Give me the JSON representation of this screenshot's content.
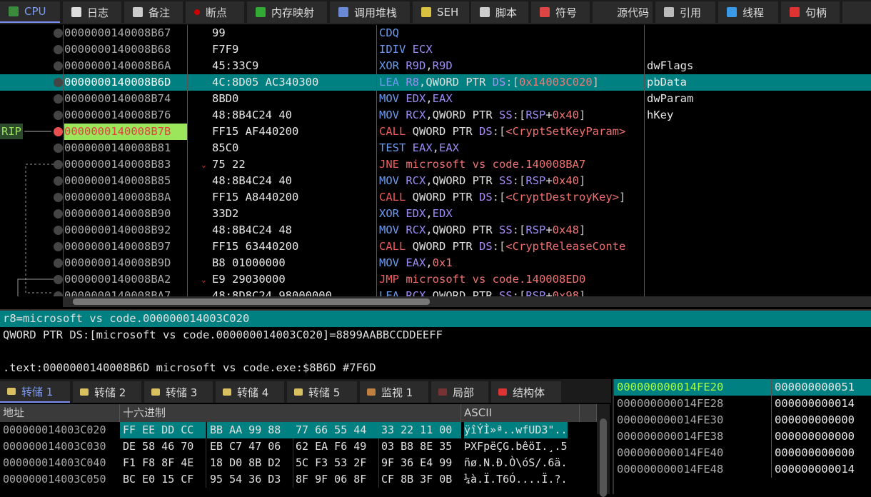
{
  "top_tabs": [
    {
      "label": "CPU",
      "icon": "cpu-chip-icon",
      "active": true
    },
    {
      "label": "日志",
      "icon": "log-note-icon"
    },
    {
      "label": "备注",
      "icon": "notes-icon"
    },
    {
      "label": "断点",
      "icon": "breakpoint-dot-icon"
    },
    {
      "label": "内存映射",
      "icon": "memory-map-icon"
    },
    {
      "label": "调用堆栈",
      "icon": "call-stack-icon"
    },
    {
      "label": "SEH",
      "icon": "seh-chain-icon"
    },
    {
      "label": "脚本",
      "icon": "script-icon"
    },
    {
      "label": "符号",
      "icon": "symbols-icon"
    },
    {
      "label": "源代码",
      "icon": "source-code-icon"
    },
    {
      "label": "引用",
      "icon": "references-icon"
    },
    {
      "label": "线程",
      "icon": "threads-icon"
    },
    {
      "label": "句柄",
      "icon": "handles-icon"
    }
  ],
  "colors": {
    "selection": "#008080",
    "rip_highlight": "#9be65a",
    "mnemonic": "#6a9cf0",
    "call_jump": "#f05a5a",
    "register": "#9d8cf5",
    "number": "#f07878"
  },
  "rip_label": "RIP",
  "disasm": [
    {
      "addr": "0000000140008B67",
      "bytes": "99",
      "ins": [
        [
          "CDQ",
          "mn"
        ]
      ],
      "cmt": ""
    },
    {
      "addr": "0000000140008B68",
      "bytes": "F7F9",
      "ins": [
        [
          "IDIV ",
          "mn"
        ],
        [
          "ECX",
          "rg"
        ]
      ],
      "cmt": ""
    },
    {
      "addr": "0000000140008B6A",
      "bytes": "45:33C9",
      "ins": [
        [
          "XOR ",
          "mn"
        ],
        [
          "R9D",
          "rg"
        ],
        [
          ",",
          "tx"
        ],
        [
          "R9D",
          "rg"
        ]
      ],
      "cmt": "dwFlags"
    },
    {
      "addr": "0000000140008B6D",
      "bytes": "4C:8D05 AC340300",
      "ins": [
        [
          "LEA ",
          "mn"
        ],
        [
          "R8",
          "rg"
        ],
        [
          ",QWORD PTR ",
          "tx"
        ],
        [
          "DS",
          "sg"
        ],
        [
          ":[",
          "br"
        ],
        [
          "0x14003C020",
          "nm"
        ],
        [
          "]",
          "br"
        ]
      ],
      "cmt": "pbData",
      "selected": true
    },
    {
      "addr": "0000000140008B74",
      "bytes": "8BD0",
      "ins": [
        [
          "MOV ",
          "mn"
        ],
        [
          "EDX",
          "rg"
        ],
        [
          ",",
          "tx"
        ],
        [
          "EAX",
          "rg"
        ]
      ],
      "cmt": "dwParam"
    },
    {
      "addr": "0000000140008B76",
      "bytes": "48:8B4C24 40",
      "ins": [
        [
          "MOV ",
          "mn"
        ],
        [
          "RCX",
          "rg"
        ],
        [
          ",QWORD PTR ",
          "tx"
        ],
        [
          "SS",
          "sg"
        ],
        [
          ":[",
          "br"
        ],
        [
          "RSP",
          "rg"
        ],
        [
          "+",
          "tx"
        ],
        [
          "0x40",
          "nm"
        ],
        [
          "]",
          "br"
        ]
      ],
      "cmt": "hKey"
    },
    {
      "addr": "0000000140008B7B",
      "bytes": "FF15 AF440200",
      "ins": [
        [
          "CALL ",
          "mr"
        ],
        [
          "QWORD PTR ",
          "tx"
        ],
        [
          "DS",
          "sg"
        ],
        [
          ":[",
          "br"
        ],
        [
          "<CryptSetKeyParam>",
          "lb"
        ]
      ],
      "cmt": "",
      "rip": true
    },
    {
      "addr": "0000000140008B81",
      "bytes": "85C0",
      "ins": [
        [
          "TEST ",
          "mn"
        ],
        [
          "EAX",
          "rg"
        ],
        [
          ",",
          "tx"
        ],
        [
          "EAX",
          "rg"
        ]
      ],
      "cmt": ""
    },
    {
      "addr": "0000000140008B83",
      "bytes": "75 22",
      "ins": [
        [
          "JNE ",
          "mr"
        ],
        [
          "microsoft vs code.140008BA7",
          "lb"
        ]
      ],
      "cmt": "",
      "jump": true
    },
    {
      "addr": "0000000140008B85",
      "bytes": "48:8B4C24 40",
      "ins": [
        [
          "MOV ",
          "mn"
        ],
        [
          "RCX",
          "rg"
        ],
        [
          ",QWORD PTR ",
          "tx"
        ],
        [
          "SS",
          "sg"
        ],
        [
          ":[",
          "br"
        ],
        [
          "RSP",
          "rg"
        ],
        [
          "+",
          "tx"
        ],
        [
          "0x40",
          "nm"
        ],
        [
          "]",
          "br"
        ]
      ],
      "cmt": ""
    },
    {
      "addr": "0000000140008B8A",
      "bytes": "FF15 A8440200",
      "ins": [
        [
          "CALL ",
          "mr"
        ],
        [
          "QWORD PTR ",
          "tx"
        ],
        [
          "DS",
          "sg"
        ],
        [
          ":[",
          "br"
        ],
        [
          "<CryptDestroyKey>",
          "lb"
        ],
        [
          "]",
          "br"
        ]
      ],
      "cmt": ""
    },
    {
      "addr": "0000000140008B90",
      "bytes": "33D2",
      "ins": [
        [
          "XOR ",
          "mn"
        ],
        [
          "EDX",
          "rg"
        ],
        [
          ",",
          "tx"
        ],
        [
          "EDX",
          "rg"
        ]
      ],
      "cmt": ""
    },
    {
      "addr": "0000000140008B92",
      "bytes": "48:8B4C24 48",
      "ins": [
        [
          "MOV ",
          "mn"
        ],
        [
          "RCX",
          "rg"
        ],
        [
          ",QWORD PTR ",
          "tx"
        ],
        [
          "SS",
          "sg"
        ],
        [
          ":[",
          "br"
        ],
        [
          "RSP",
          "rg"
        ],
        [
          "+",
          "tx"
        ],
        [
          "0x48",
          "nm"
        ],
        [
          "]",
          "br"
        ]
      ],
      "cmt": ""
    },
    {
      "addr": "0000000140008B97",
      "bytes": "FF15 63440200",
      "ins": [
        [
          "CALL ",
          "mr"
        ],
        [
          "QWORD PTR ",
          "tx"
        ],
        [
          "DS",
          "sg"
        ],
        [
          ":[",
          "br"
        ],
        [
          "<CryptReleaseConte",
          "lb"
        ]
      ],
      "cmt": ""
    },
    {
      "addr": "0000000140008B9D",
      "bytes": "B8 01000000",
      "ins": [
        [
          "MOV ",
          "mn"
        ],
        [
          "EAX",
          "rg"
        ],
        [
          ",",
          "tx"
        ],
        [
          "0x1",
          "nm"
        ]
      ],
      "cmt": ""
    },
    {
      "addr": "0000000140008BA2",
      "bytes": "E9 29030000",
      "ins": [
        [
          "JMP ",
          "mr"
        ],
        [
          "microsoft vs code.140008ED0",
          "lb"
        ]
      ],
      "cmt": "",
      "jump": true
    },
    {
      "addr": "0000000140008BA7",
      "bytes": "48:8D8C24 98000000",
      "ins": [
        [
          "LEA ",
          "mn"
        ],
        [
          "RCX",
          "rg"
        ],
        [
          ",QWORD PTR ",
          "tx"
        ],
        [
          "SS",
          "sg"
        ],
        [
          ":[",
          "br"
        ],
        [
          "RSP",
          "rg"
        ],
        [
          "+",
          "tx"
        ],
        [
          "0x98",
          "nm"
        ],
        [
          "]",
          "br"
        ]
      ],
      "cmt": ""
    }
  ],
  "info": {
    "line1": "r8=microsoft vs code.000000014003C020",
    "line2": "QWORD PTR DS:[microsoft vs code.000000014003C020]=8899AABBCCDDEEFF",
    "line3": "",
    "line4": ".text:0000000140008B6D microsoft vs code.exe:$8B6D #7F6D"
  },
  "bottom_tabs": [
    {
      "label": "转储 1",
      "icon": "dump-icon",
      "active": true
    },
    {
      "label": "转储 2",
      "icon": "dump-icon"
    },
    {
      "label": "转储 3",
      "icon": "dump-icon"
    },
    {
      "label": "转储 4",
      "icon": "dump-icon"
    },
    {
      "label": "转储 5",
      "icon": "dump-icon"
    },
    {
      "label": "监视 1",
      "icon": "watch-icon"
    },
    {
      "label": "局部",
      "icon": "locals-icon"
    },
    {
      "label": "结构体",
      "icon": "struct-icon"
    }
  ],
  "dump": {
    "headers": {
      "addr": "地址",
      "hex": "十六进制",
      "ascii": "ASCII"
    },
    "rows": [
      {
        "addr": "000000014003C020",
        "hex": [
          "FF EE DD CC",
          "BB AA 99 88",
          "77 66 55 44",
          "33 22 11 00"
        ],
        "ascii": "ÿîÝÌ»ª..wfUD3\"..",
        "selected": true
      },
      {
        "addr": "000000014003C030",
        "hex": [
          "DE 58 46 70",
          "EB C7 47 06",
          "62 EA F6 49",
          "03 B8 8E 35"
        ],
        "ascii": "ÞXFpëÇG.bêöI.¸.5"
      },
      {
        "addr": "000000014003C040",
        "hex": [
          "F1 F8 8F 4E",
          "18 D0 8B D2",
          "5C F3 53 2F",
          "9F 36 E4 99"
        ],
        "ascii": "ñø.N.Ð.Ò\\óS/.6ä."
      },
      {
        "addr": "000000014003C050",
        "hex": [
          "BC E0 15 CF",
          "95 54 36 D3",
          "8F 9F 06 8F",
          "CF 8B 3F 0B"
        ],
        "ascii": "¼à.Ï.T6Ó....Ï.?."
      }
    ]
  },
  "stack": [
    {
      "addr": "000000000014FE20",
      "val": "000000000051",
      "selected": true
    },
    {
      "addr": "000000000014FE28",
      "val": "000000000014"
    },
    {
      "addr": "000000000014FE30",
      "val": "000000000000"
    },
    {
      "addr": "000000000014FE38",
      "val": "000000000000"
    },
    {
      "addr": "000000000014FE40",
      "val": "000000000000"
    },
    {
      "addr": "000000000014FE48",
      "val": "000000000014"
    }
  ]
}
